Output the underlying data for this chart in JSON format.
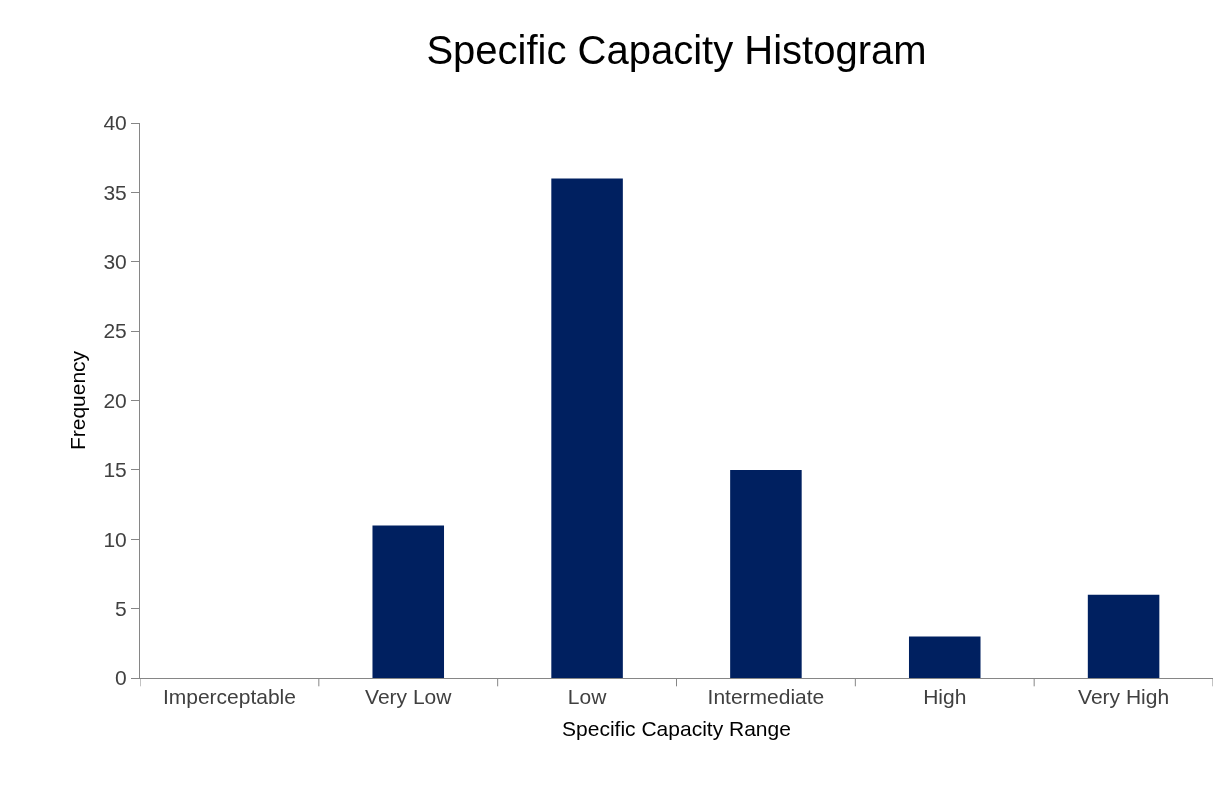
{
  "chart_data": {
    "type": "bar",
    "title": "Specific Capacity Histogram",
    "xlabel": "Specific Capacity Range",
    "ylabel": "Frequency",
    "categories": [
      "Imperceptable",
      "Very Low",
      "Low",
      "Intermediate",
      "High",
      "Very High"
    ],
    "values": [
      0,
      11,
      36,
      15,
      3,
      6
    ],
    "color": "#002060",
    "ylim": [
      0,
      40
    ],
    "yticks": [
      0,
      5,
      10,
      15,
      20,
      25,
      30,
      35,
      40
    ],
    "grid": false
  }
}
